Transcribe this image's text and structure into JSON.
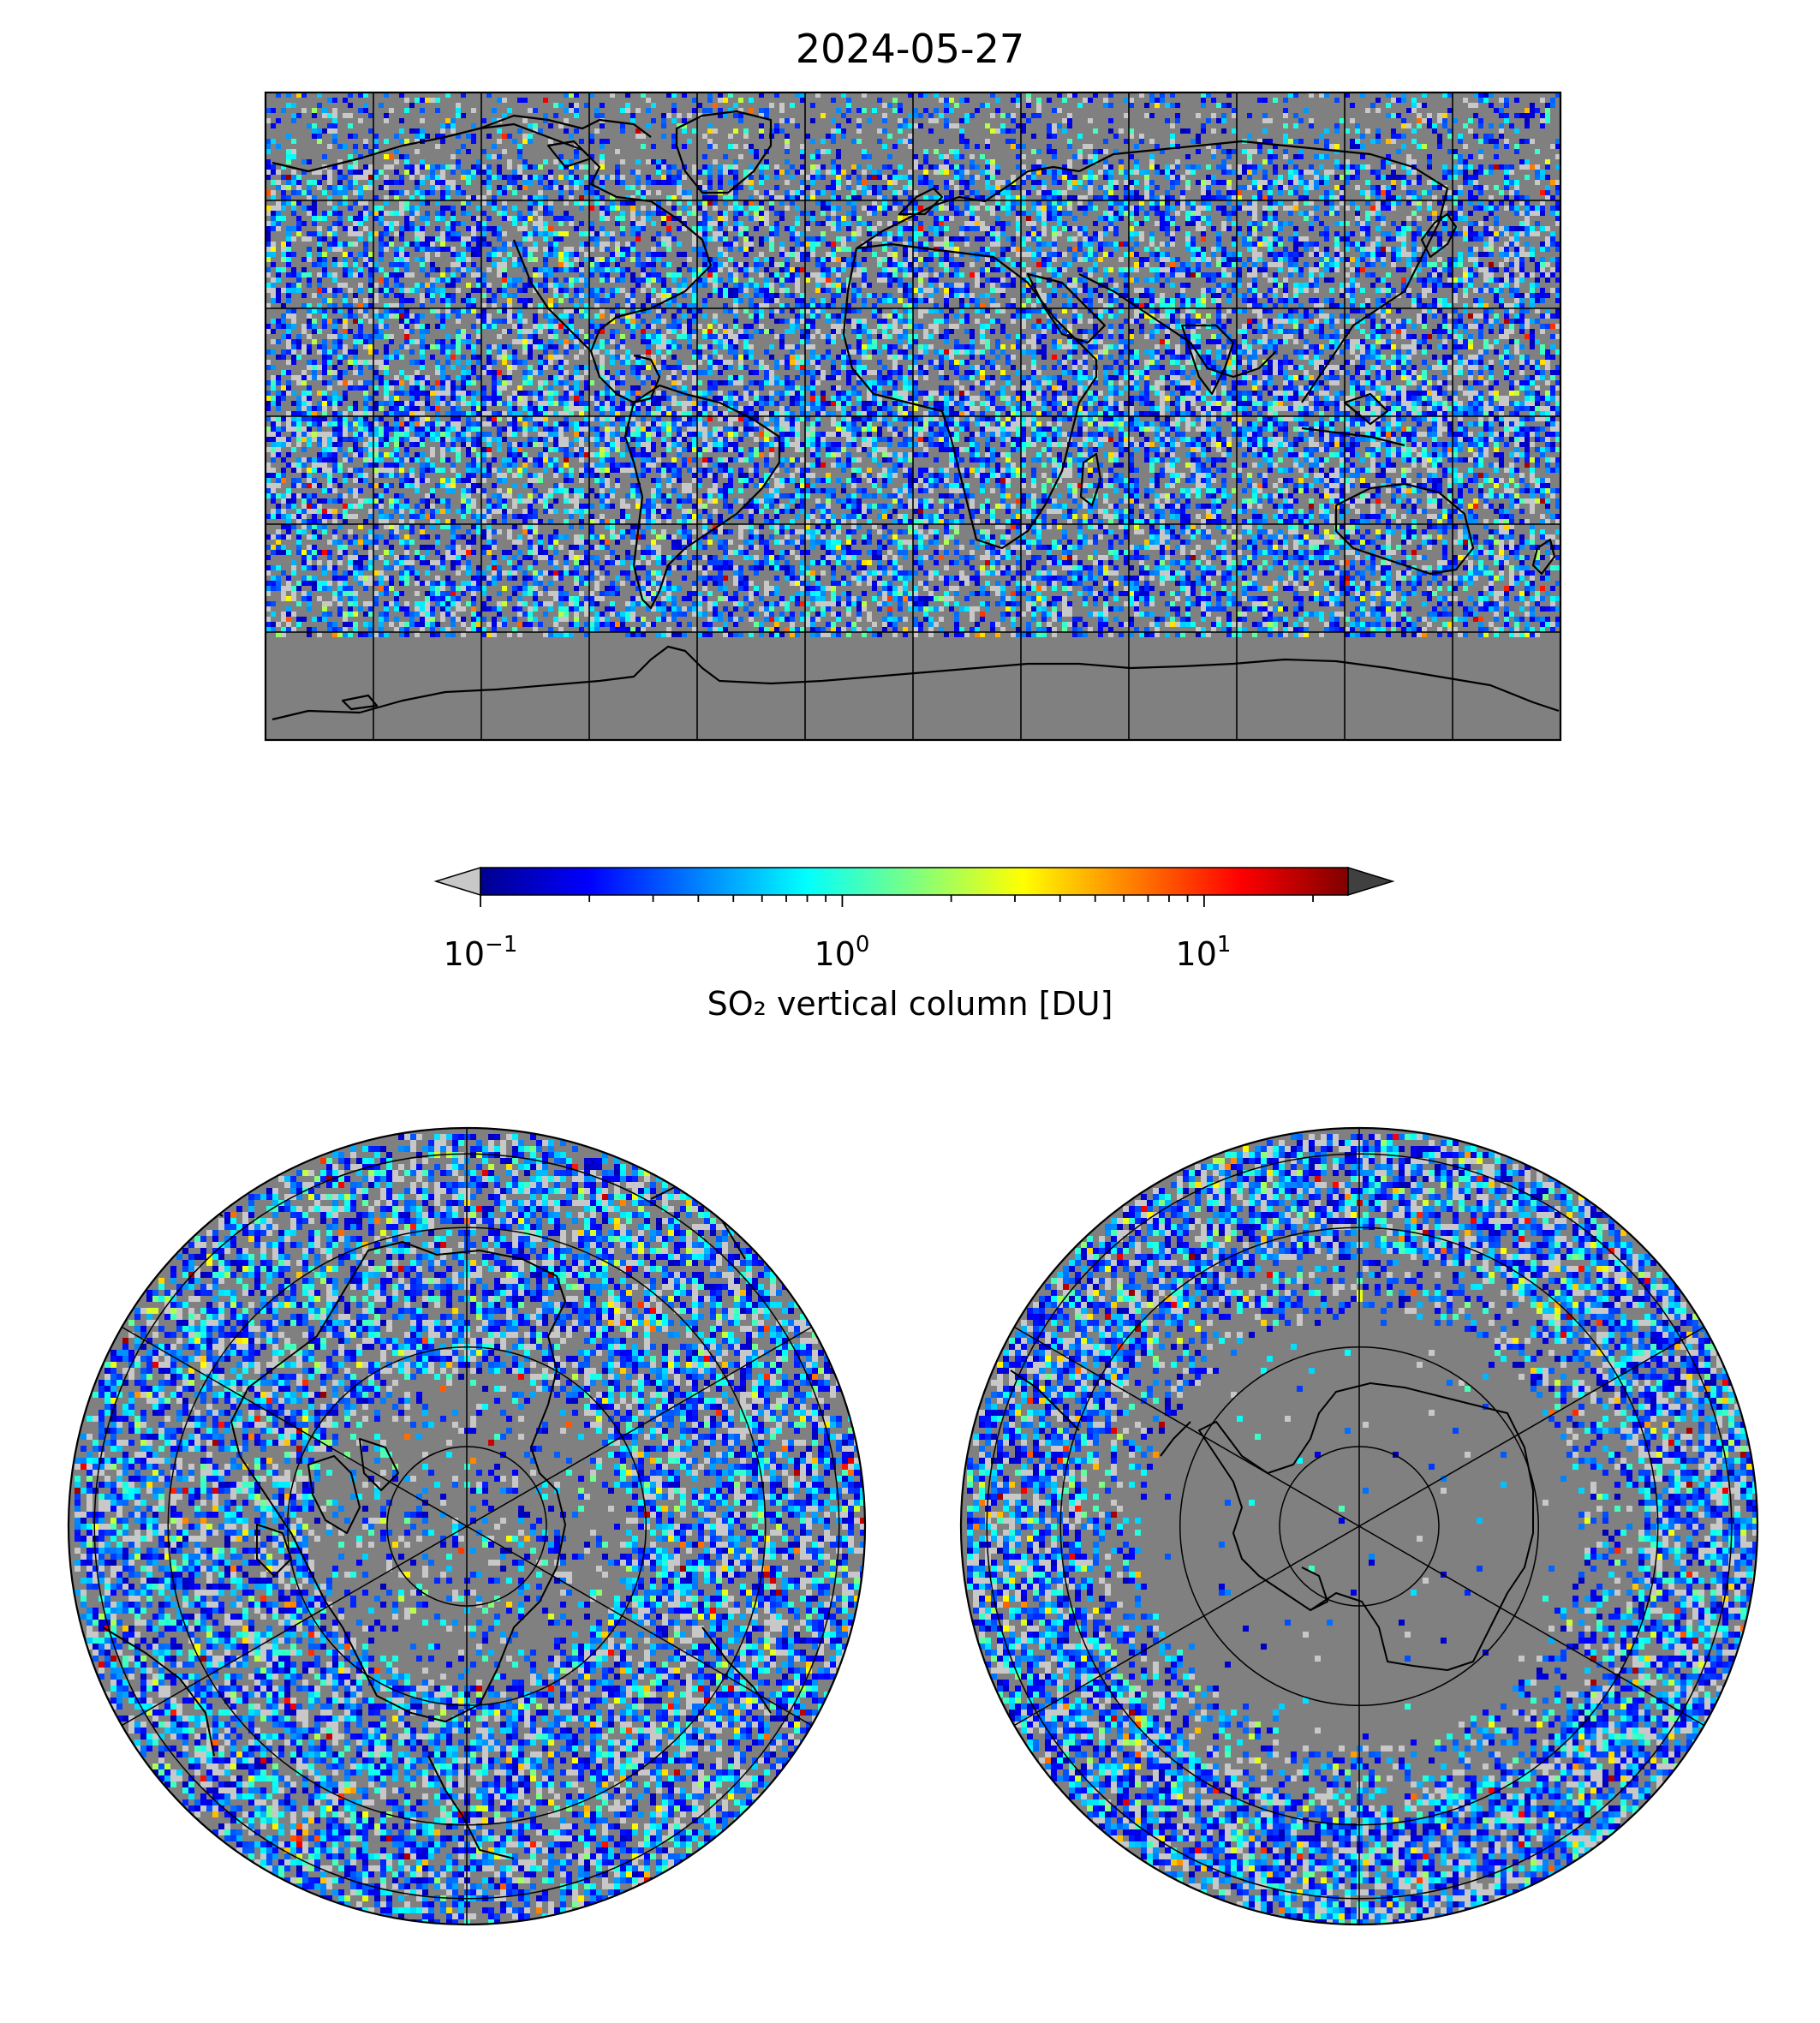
{
  "title": "2024-05-27",
  "colorbar": {
    "label": "SO₂ vertical column [DU]",
    "scale": "log",
    "range": [
      0.1,
      25
    ],
    "ticks": [
      {
        "base": "10",
        "exp": "−1",
        "value": 0.1
      },
      {
        "base": "10",
        "exp": "0",
        "value": 1
      },
      {
        "base": "10",
        "exp": "1",
        "value": 10
      }
    ],
    "extend": "both",
    "under_color": "#c8c8c8",
    "over_color": "#404040",
    "colormap": "jet"
  },
  "maps": [
    {
      "name": "global",
      "projection": "equirectangular",
      "gridlines_lon_deg": 30,
      "gridlines_lat_deg": 30
    },
    {
      "name": "north-polar",
      "projection": "azimuthal",
      "hemisphere": "north"
    },
    {
      "name": "south-polar",
      "projection": "azimuthal",
      "hemisphere": "south"
    }
  ],
  "colors": {
    "no_data": "#808080",
    "below_range": "#c8c8c8",
    "coastline": "#000000"
  }
}
